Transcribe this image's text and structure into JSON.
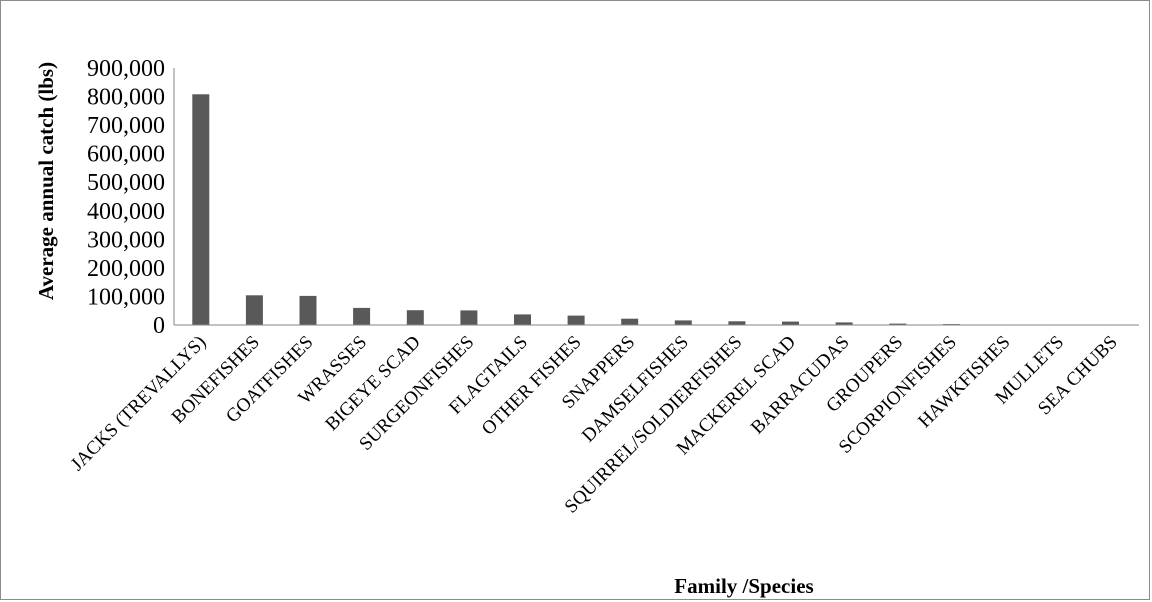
{
  "chart_data": {
    "type": "bar",
    "title": "",
    "xlabel": "Family /Species",
    "ylabel": "Average annual catch (lbs)",
    "ylim": [
      0,
      900000
    ],
    "yticks": [
      0,
      100000,
      200000,
      300000,
      400000,
      500000,
      600000,
      700000,
      800000,
      900000
    ],
    "ytick_labels": [
      "0",
      "100,000",
      "200,000",
      "300,000",
      "400,000",
      "500,000",
      "600,000",
      "700,000",
      "800,000",
      "900,000"
    ],
    "grid": false,
    "legend": "none",
    "bar_color": "#595959",
    "categories": [
      "JACKS (TREVALLYS)",
      "BONEFISHES",
      "GOATFISHES",
      "WRASSES",
      "BIGEYE SCAD",
      "SURGEONFISHES",
      "FLAGTAILS",
      "OTHER FISHES",
      "SNAPPERS",
      "DAMSELFISHES",
      "SQUIRREL/SOLDIERFISHES",
      "MACKEREL SCAD",
      "BARRACUDAS",
      "GROUPERS",
      "SCORPIONFISHES",
      "HAWKFISHES",
      "MULLETS",
      "SEA CHUBS"
    ],
    "values": [
      808000,
      104000,
      102000,
      60000,
      52000,
      51000,
      37000,
      33000,
      22000,
      16000,
      13000,
      12000,
      9000,
      5000,
      3000,
      1000,
      500,
      300
    ]
  }
}
